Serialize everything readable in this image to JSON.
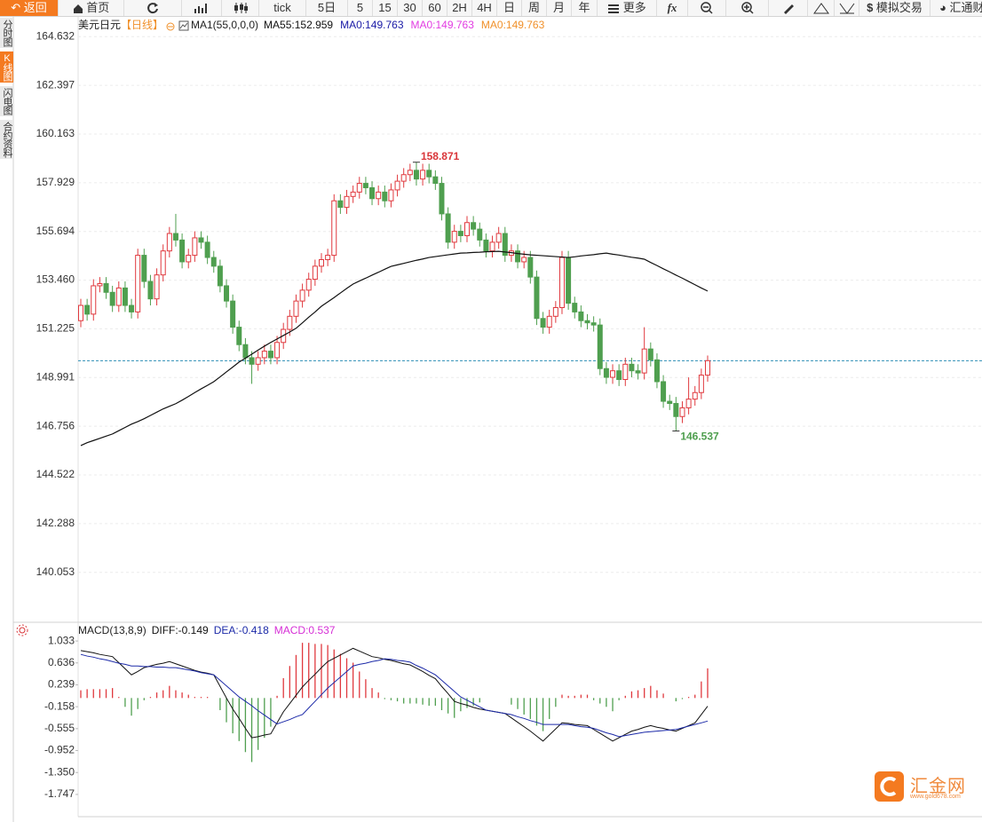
{
  "toolbar": {
    "back": "返回",
    "home": "首页",
    "periods": [
      "tick",
      "5日",
      "5",
      "15",
      "30",
      "60",
      "2H",
      "4H",
      "日",
      "周",
      "月",
      "年"
    ],
    "more": "更多",
    "fx": "fx",
    "simulate": "模拟交易",
    "brand": "汇通财"
  },
  "sidebar": [
    "分时图",
    "K线图",
    "闪电图",
    "合约资料"
  ],
  "watermark": {
    "name": "汇金网",
    "url": "www.gold678.com"
  },
  "chart_data": [
    {
      "type": "candlestick",
      "title": "美元日元",
      "period": "【日线】",
      "indicator": "MA1(55,0,0,0)",
      "up_color": "#e0393e",
      "down_color": "#4f9f4f",
      "open": [
        151.6,
        152.3,
        151.9,
        153.2,
        153.3,
        152.9,
        152.3,
        153.1,
        152.3,
        152.0,
        154.6,
        153.4,
        152.6,
        153.7,
        154.8,
        155.6,
        155.3,
        154.3,
        154.6,
        155.4,
        155.2,
        154.5,
        154.1,
        153.2,
        152.5,
        151.3,
        150.5,
        149.9,
        149.6,
        149.9,
        150.2,
        149.9,
        150.6,
        151.2,
        151.8,
        152.5,
        153.0,
        153.5,
        154.1,
        154.4,
        154.6,
        157.1,
        156.8,
        157.3,
        157.5,
        157.9,
        157.7,
        157.2,
        157.5,
        157.1,
        157.6,
        158.0,
        158.3,
        158.5,
        158.1,
        158.5,
        158.2,
        157.9,
        156.5,
        155.2,
        155.7,
        155.5,
        156.1,
        155.8,
        155.3,
        154.8,
        155.2,
        155.6,
        154.6,
        154.8,
        154.3,
        154.5,
        153.6,
        151.7,
        151.3,
        151.8,
        152.2,
        154.5,
        152.4,
        152.0,
        151.6,
        151.5,
        151.4,
        149.4,
        149.0,
        149.3,
        148.9,
        149.6,
        149.3,
        149.2,
        150.3,
        149.8,
        148.8,
        147.9,
        147.8,
        147.2,
        147.6,
        148.0,
        148.3,
        149.1
      ],
      "high": [
        152.6,
        152.6,
        153.5,
        153.6,
        153.6,
        153.2,
        153.4,
        153.4,
        152.6,
        154.9,
        154.9,
        153.7,
        154.0,
        155.1,
        155.9,
        156.5,
        155.6,
        154.9,
        155.7,
        155.7,
        155.5,
        154.8,
        154.4,
        153.5,
        152.8,
        151.6,
        150.8,
        150.2,
        150.2,
        150.5,
        150.5,
        150.9,
        151.5,
        152.1,
        152.8,
        153.3,
        153.8,
        154.4,
        154.7,
        154.9,
        157.4,
        157.4,
        157.6,
        157.8,
        158.2,
        158.2,
        158.0,
        157.8,
        157.8,
        157.9,
        158.3,
        158.6,
        158.8,
        158.871,
        158.8,
        158.8,
        158.5,
        158.2,
        156.8,
        156.0,
        156.0,
        156.4,
        156.4,
        156.1,
        155.6,
        155.5,
        155.9,
        155.9,
        155.1,
        155.1,
        154.8,
        154.8,
        153.9,
        152.0,
        152.1,
        152.5,
        154.8,
        154.8,
        152.7,
        152.3,
        151.9,
        151.8,
        151.7,
        149.7,
        149.6,
        149.6,
        149.9,
        149.9,
        149.6,
        151.3,
        150.6,
        150.1,
        149.1,
        148.2,
        148.1,
        147.9,
        149.0,
        148.6,
        149.4,
        150.0
      ],
      "low": [
        151.3,
        151.6,
        151.6,
        152.9,
        152.6,
        152.0,
        152.0,
        152.0,
        151.7,
        151.7,
        153.1,
        152.3,
        152.3,
        153.4,
        154.5,
        155.0,
        154.0,
        154.0,
        154.3,
        154.9,
        154.2,
        153.8,
        152.9,
        152.2,
        151.0,
        150.2,
        149.6,
        148.7,
        149.3,
        149.6,
        149.6,
        149.6,
        150.3,
        150.9,
        151.5,
        152.2,
        152.7,
        153.2,
        153.8,
        154.1,
        154.3,
        156.5,
        156.5,
        157.0,
        157.2,
        157.4,
        156.9,
        156.9,
        156.8,
        156.8,
        157.3,
        157.7,
        158.0,
        157.8,
        157.8,
        157.9,
        157.6,
        156.2,
        154.9,
        154.9,
        155.2,
        155.2,
        155.5,
        155.0,
        154.5,
        154.5,
        154.9,
        154.3,
        154.3,
        154.0,
        154.0,
        153.3,
        151.4,
        151.0,
        151.0,
        151.5,
        151.9,
        152.1,
        151.7,
        151.3,
        151.2,
        151.1,
        149.1,
        148.7,
        148.7,
        148.6,
        148.6,
        149.0,
        148.9,
        148.9,
        149.5,
        148.5,
        147.6,
        147.5,
        146.537,
        146.9,
        147.3,
        147.7,
        148.0,
        148.8
      ],
      "close": [
        152.3,
        151.9,
        153.2,
        153.3,
        152.9,
        152.3,
        153.1,
        152.3,
        152.0,
        154.6,
        153.4,
        152.6,
        153.7,
        154.8,
        155.6,
        155.3,
        154.3,
        154.6,
        155.4,
        155.2,
        154.5,
        154.1,
        153.2,
        152.5,
        151.3,
        150.5,
        149.9,
        149.6,
        149.9,
        150.2,
        149.9,
        150.6,
        151.2,
        151.8,
        152.5,
        153.0,
        153.5,
        154.1,
        154.4,
        154.6,
        157.1,
        156.8,
        157.3,
        157.5,
        157.9,
        157.7,
        157.2,
        157.5,
        157.1,
        157.6,
        158.0,
        158.3,
        158.5,
        158.1,
        158.5,
        158.2,
        157.9,
        156.5,
        155.2,
        155.7,
        155.5,
        156.1,
        155.8,
        155.3,
        154.8,
        155.2,
        155.6,
        154.6,
        154.8,
        154.3,
        154.5,
        153.6,
        151.7,
        151.3,
        151.8,
        152.2,
        154.5,
        152.4,
        152.0,
        151.6,
        151.5,
        151.4,
        149.4,
        149.0,
        149.3,
        148.9,
        149.6,
        149.3,
        149.2,
        150.3,
        149.8,
        148.8,
        147.9,
        147.8,
        147.2,
        147.6,
        148.0,
        148.3,
        149.1,
        149.763
      ],
      "overlay": {
        "name": "MA55:152.959",
        "color": "#111111",
        "values": [
          145.87,
          146.0,
          146.1,
          146.2,
          146.3,
          146.4,
          146.55,
          146.7,
          146.85,
          146.97,
          147.1,
          147.25,
          147.4,
          147.55,
          147.67,
          147.79,
          147.95,
          148.12,
          148.3,
          148.47,
          148.63,
          148.8,
          149.02,
          149.25,
          149.47,
          149.7,
          149.88,
          150.06,
          150.25,
          150.43,
          150.6,
          150.76,
          150.92,
          151.08,
          151.25,
          151.5,
          151.76,
          152.0,
          152.26,
          152.46,
          152.66,
          152.87,
          153.08,
          153.28,
          153.42,
          153.55,
          153.69,
          153.82,
          153.96,
          154.09,
          154.16,
          154.23,
          154.3,
          154.37,
          154.43,
          154.5,
          154.54,
          154.58,
          154.62,
          154.66,
          154.7,
          154.71,
          154.73,
          154.74,
          154.76,
          154.77,
          154.78,
          154.75,
          154.72,
          154.68,
          154.65,
          154.62,
          154.6,
          154.58,
          154.56,
          154.54,
          154.52,
          154.5,
          154.53,
          154.57,
          154.6,
          154.63,
          154.67,
          154.7,
          154.65,
          154.61,
          154.56,
          154.51,
          154.47,
          154.42,
          154.27,
          154.13,
          153.98,
          153.84,
          153.69,
          153.55,
          153.4,
          153.25,
          153.1,
          152.959
        ]
      },
      "extra_labels": [
        {
          "text": "MA0:149.763",
          "color": "#1a1aa6"
        },
        {
          "text": "MA0:149.763",
          "color": "#e23ce2"
        },
        {
          "text": "MA0:149.763",
          "color": "#f0902a"
        }
      ],
      "current_price": {
        "value": 149.763,
        "color": "#2f8fb5"
      },
      "ylim": [
        137.8,
        165.5
      ],
      "yticks": [
        164.632,
        162.397,
        160.163,
        157.929,
        155.694,
        {
          "value": 153.46,
          "label": "153.460"
        },
        151.225,
        148.991,
        146.756,
        144.522,
        142.288,
        140.053
      ],
      "grid": true
    },
    {
      "type": "macd",
      "title": "MACD(13,8,9)",
      "series": [
        {
          "name": "DIFF:-0.149",
          "color": "#111111",
          "values": [
            0.86,
            0.84,
            0.82,
            0.79,
            0.77,
            0.75,
            0.64,
            0.53,
            0.42,
            0.48,
            0.55,
            0.58,
            0.61,
            0.63,
            0.66,
            0.62,
            0.58,
            0.54,
            0.5,
            0.47,
            0.45,
            0.42,
            0.21,
            0.0,
            -0.2,
            -0.37,
            -0.55,
            -0.72,
            -0.7,
            -0.67,
            -0.65,
            -0.45,
            -0.25,
            -0.1,
            0.05,
            0.2,
            0.32,
            0.43,
            0.55,
            0.66,
            0.72,
            0.78,
            0.84,
            0.9,
            0.85,
            0.8,
            0.75,
            0.73,
            0.7,
            0.68,
            0.65,
            0.62,
            0.6,
            0.54,
            0.48,
            0.41,
            0.35,
            0.21,
            0.08,
            -0.06,
            -0.1,
            -0.13,
            -0.17,
            -0.2,
            -0.22,
            -0.24,
            -0.26,
            -0.28,
            -0.36,
            -0.44,
            -0.52,
            -0.6,
            -0.69,
            -0.78,
            -0.67,
            -0.56,
            -0.45,
            -0.46,
            -0.48,
            -0.49,
            -0.5,
            -0.57,
            -0.64,
            -0.71,
            -0.78,
            -0.72,
            -0.66,
            -0.6,
            -0.57,
            -0.53,
            -0.5,
            -0.53,
            -0.55,
            -0.58,
            -0.6,
            -0.55,
            -0.5,
            -0.45,
            -0.3,
            -0.149
          ]
        },
        {
          "name": "DEA:-0.418",
          "color": "#1c2aa8",
          "values": [
            0.79,
            0.76,
            0.74,
            0.71,
            0.69,
            0.66,
            0.63,
            0.61,
            0.58,
            0.58,
            0.57,
            0.57,
            0.56,
            0.56,
            0.55,
            0.55,
            0.53,
            0.51,
            0.49,
            0.46,
            0.44,
            0.42,
            0.32,
            0.22,
            0.12,
            0.02,
            -0.06,
            -0.14,
            -0.23,
            -0.31,
            -0.39,
            -0.47,
            -0.43,
            -0.39,
            -0.34,
            -0.3,
            -0.18,
            -0.06,
            0.06,
            0.18,
            0.28,
            0.38,
            0.48,
            0.58,
            0.61,
            0.63,
            0.66,
            0.68,
            0.71,
            0.7,
            0.68,
            0.67,
            0.65,
            0.59,
            0.54,
            0.48,
            0.42,
            0.32,
            0.22,
            0.12,
            0.02,
            -0.04,
            -0.1,
            -0.16,
            -0.22,
            -0.24,
            -0.26,
            -0.28,
            -0.3,
            -0.34,
            -0.37,
            -0.41,
            -0.44,
            -0.48,
            -0.48,
            -0.48,
            -0.48,
            -0.48,
            -0.5,
            -0.52,
            -0.53,
            -0.55,
            -0.59,
            -0.63,
            -0.66,
            -0.7,
            -0.68,
            -0.66,
            -0.64,
            -0.62,
            -0.61,
            -0.6,
            -0.59,
            -0.58,
            -0.57,
            -0.54,
            -0.51,
            -0.48,
            -0.45,
            -0.418
          ]
        }
      ],
      "histogram": {
        "name": "MACD:0.537",
        "color": "#d62fd6",
        "up_color": "#e0393e",
        "down_color": "#4f9f4f",
        "values": [
          0.14,
          0.16,
          0.16,
          0.16,
          0.16,
          0.18,
          0.02,
          -0.16,
          -0.32,
          -0.2,
          -0.04,
          0.02,
          0.1,
          0.14,
          0.22,
          0.14,
          0.1,
          0.06,
          0.02,
          0.02,
          0.02,
          0.0,
          -0.22,
          -0.44,
          -0.64,
          -0.78,
          -0.98,
          -1.16,
          -0.94,
          -0.72,
          -0.52,
          0.04,
          0.36,
          0.58,
          0.78,
          1.0,
          1.0,
          0.98,
          0.98,
          0.96,
          0.88,
          0.8,
          0.72,
          0.64,
          0.48,
          0.34,
          0.18,
          0.1,
          -0.02,
          -0.04,
          -0.06,
          -0.1,
          -0.1,
          -0.1,
          -0.12,
          -0.14,
          -0.14,
          -0.22,
          -0.28,
          -0.36,
          -0.24,
          -0.18,
          -0.14,
          -0.08,
          0.0,
          0.0,
          0.0,
          0.0,
          -0.12,
          -0.2,
          -0.3,
          -0.38,
          -0.5,
          -0.6,
          -0.38,
          -0.16,
          0.06,
          0.04,
          0.04,
          0.06,
          0.06,
          -0.04,
          -0.1,
          -0.16,
          -0.24,
          -0.04,
          0.04,
          0.12,
          0.14,
          0.18,
          0.22,
          0.14,
          0.08,
          0.0,
          -0.06,
          -0.02,
          0.02,
          0.06,
          0.3,
          0.537
        ]
      },
      "ylim": [
        -2.15,
        1.34
      ],
      "yticks": [
        1.033,
        0.636,
        0.239,
        -0.158,
        -0.555,
        -0.952,
        {
          "value": -1.35,
          "label": "-1.350"
        },
        -1.747
      ],
      "grid": false
    }
  ]
}
